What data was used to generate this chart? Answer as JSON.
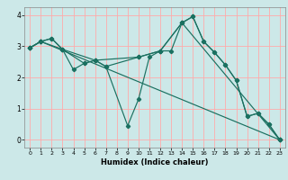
{
  "title": "",
  "xlabel": "Humidex (Indice chaleur)",
  "background_color": "#cce8e8",
  "grid_color": "#ffaaaa",
  "line_color": "#1a7060",
  "marker": "D",
  "markersize": 2.2,
  "linewidth": 0.85,
  "xlim": [
    -0.5,
    23.5
  ],
  "ylim": [
    -0.25,
    4.25
  ],
  "xticks": [
    0,
    1,
    2,
    3,
    4,
    5,
    6,
    7,
    8,
    9,
    10,
    11,
    12,
    13,
    14,
    15,
    16,
    17,
    18,
    19,
    20,
    21,
    22,
    23
  ],
  "yticks": [
    0,
    1,
    2,
    3,
    4
  ],
  "series": [
    {
      "x": [
        0,
        1,
        2,
        3,
        4,
        5,
        6,
        7,
        9,
        10,
        11,
        12,
        13,
        14,
        15,
        16,
        17,
        18,
        19,
        20,
        21,
        22,
        23
      ],
      "y": [
        2.95,
        3.15,
        3.25,
        2.9,
        2.25,
        2.45,
        2.55,
        2.35,
        0.45,
        1.3,
        2.65,
        2.85,
        2.85,
        3.75,
        3.95,
        3.15,
        2.8,
        2.4,
        1.9,
        0.75,
        0.85,
        0.5,
        0.0
      ]
    },
    {
      "x": [
        0,
        1,
        3,
        5,
        6,
        7,
        10,
        12,
        14,
        15,
        16,
        17,
        18,
        19,
        20,
        21,
        22,
        23
      ],
      "y": [
        2.95,
        3.15,
        2.9,
        2.45,
        2.55,
        2.35,
        2.65,
        2.85,
        3.75,
        3.95,
        3.15,
        2.8,
        2.4,
        1.9,
        0.75,
        0.85,
        0.5,
        0.0
      ]
    },
    {
      "x": [
        0,
        1,
        23
      ],
      "y": [
        2.95,
        3.15,
        0.0
      ]
    },
    {
      "x": [
        0,
        1,
        2,
        3,
        6,
        10,
        12,
        14,
        23
      ],
      "y": [
        2.95,
        3.15,
        3.25,
        2.9,
        2.55,
        2.65,
        2.85,
        3.75,
        0.0
      ]
    }
  ]
}
